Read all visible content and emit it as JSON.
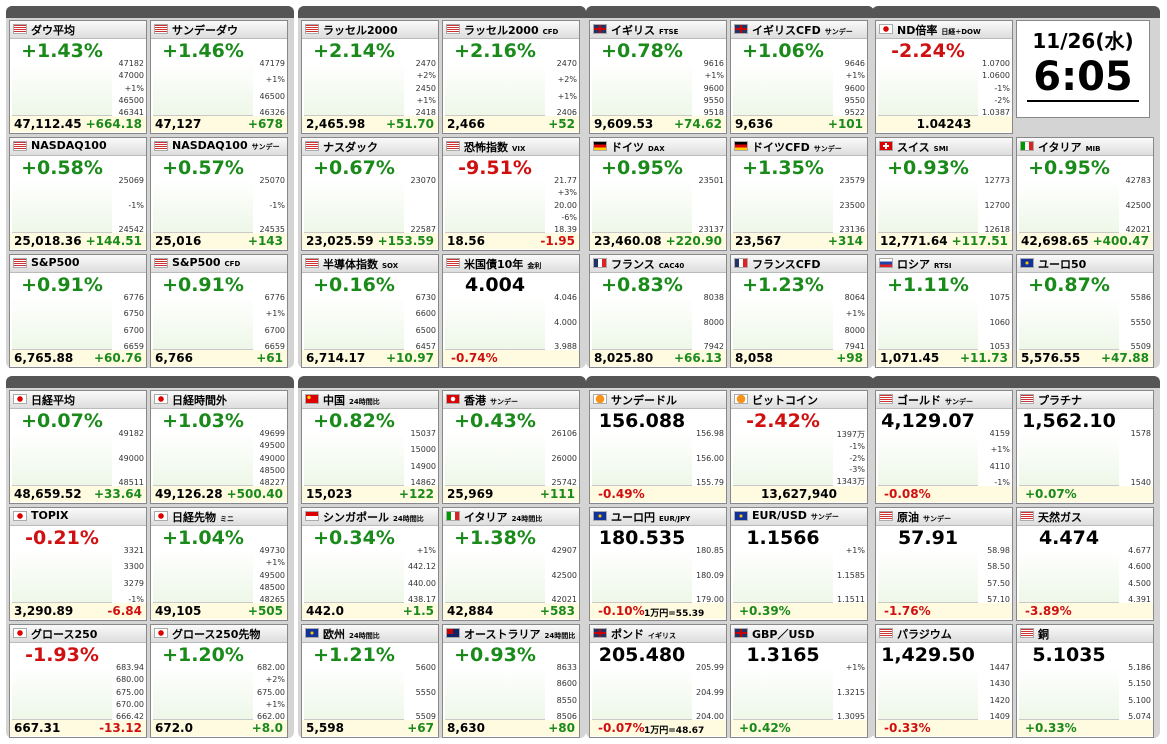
{
  "panels": [
    {
      "tiles": [
        {
          "name": "ダウ平均",
          "flag": "us",
          "pct": "+1.43%",
          "price": "47,112.45",
          "change": "+664.18",
          "axis": [
            "47182",
            "47000",
            "+1%",
            "46500",
            "46341"
          ]
        },
        {
          "name": "サンデーダウ",
          "flag": "us",
          "pct": "+1.46%",
          "price": "47,127",
          "change": "+678",
          "axis": [
            "47179",
            "+1%",
            "46500",
            "46326"
          ]
        },
        {
          "name": "NASDAQ100",
          "flag": "us",
          "pct": "+0.58%",
          "price": "25,018.36",
          "change": "+144.51",
          "axis": [
            "25069",
            "-1%",
            "24542"
          ]
        },
        {
          "name": "NASDAQ100",
          "tag": "サンデー",
          "flag": "us",
          "pct": "+0.57%",
          "price": "25,016",
          "change": "+143",
          "axis": [
            "25070",
            "-1%",
            "24535"
          ]
        },
        {
          "name": "S&P500",
          "flag": "us",
          "pct": "+0.91%",
          "price": "6,765.88",
          "change": "+60.76",
          "axis": [
            "6776",
            "6750",
            "6700",
            "6659"
          ]
        },
        {
          "name": "S&P500",
          "tag": "CFD",
          "flag": "us",
          "pct": "+0.91%",
          "price": "6,766",
          "change": "+61",
          "axis": [
            "6776",
            "+1%",
            "6700",
            "6659"
          ]
        }
      ]
    },
    {
      "tiles": [
        {
          "name": "ラッセル2000",
          "flag": "us",
          "pct": "+2.14%",
          "price": "2,465.98",
          "change": "+51.70",
          "axis": [
            "2470",
            "+2%",
            "2450",
            "+1%",
            "2418"
          ]
        },
        {
          "name": "ラッセル2000",
          "tag": "CFD",
          "flag": "us",
          "pct": "+2.16%",
          "price": "2,466",
          "change": "+52",
          "axis": [
            "2470",
            "+2%",
            "+1%",
            "2406"
          ]
        },
        {
          "name": "ナスダック",
          "flag": "us",
          "pct": "+0.67%",
          "price": "23,025.59",
          "change": "+153.59",
          "axis": [
            "23070",
            "22587"
          ]
        },
        {
          "name": "恐怖指数",
          "tag": "VIX",
          "flag": "us",
          "pct": "-9.51%",
          "price": "18.56",
          "change": "-1.95",
          "axis": [
            "21.77",
            "+3%",
            "20.00",
            "-6%",
            "18.39"
          ]
        },
        {
          "name": "半導体指数",
          "tag": "SOX",
          "flag": "us",
          "pct": "+0.16%",
          "price": "6,714.17",
          "change": "+10.97",
          "axis": [
            "6730",
            "6600",
            "6500",
            "6457"
          ]
        },
        {
          "name": "米国債10年",
          "tag": "金利",
          "flag": "us",
          "layout": "quote",
          "price": "4.004",
          "pct": "-0.74%",
          "axis": [
            "4.046",
            "4.000",
            "3.988"
          ]
        }
      ]
    },
    {
      "tiles": [
        {
          "name": "イギリス",
          "tag": "FTSE",
          "flag": "uk",
          "pct": "+0.78%",
          "price": "9,609.53",
          "change": "+74.62",
          "axis": [
            "9616",
            "+1%",
            "9600",
            "9550",
            "9518"
          ]
        },
        {
          "name": "イギリスCFD",
          "tag": "サンデー",
          "flag": "uk",
          "pct": "+1.06%",
          "price": "9,636",
          "change": "+101",
          "axis": [
            "9646",
            "+1%",
            "9600",
            "9550",
            "9522"
          ]
        },
        {
          "name": "ドイツ",
          "tag": "DAX",
          "flag": "de",
          "pct": "+0.95%",
          "price": "23,460.08",
          "change": "+220.90",
          "axis": [
            "23501",
            "23137"
          ]
        },
        {
          "name": "ドイツCFD",
          "tag": "サンデー",
          "flag": "de",
          "pct": "+1.35%",
          "price": "23,567",
          "change": "+314",
          "axis": [
            "23579",
            "23500",
            "23136"
          ]
        },
        {
          "name": "フランス",
          "tag": "CAC40",
          "flag": "fr",
          "pct": "+0.83%",
          "price": "8,025.80",
          "change": "+66.13",
          "axis": [
            "8038",
            "8000",
            "7942"
          ]
        },
        {
          "name": "フランスCFD",
          "flag": "fr",
          "pct": "+1.23%",
          "price": "8,058",
          "change": "+98",
          "axis": [
            "8064",
            "+1%",
            "8000",
            "7941"
          ]
        }
      ]
    },
    {
      "clock": {
        "date": "11/26(水)",
        "time": "6:05"
      },
      "tiles": [
        {
          "name": "ND倍率",
          "tag": "日経÷DOW",
          "flag": "jp",
          "layout": "ratio",
          "pct": "-2.24%",
          "price": "1.04243",
          "axis": [
            "1.0700",
            "1.0600",
            "-1%",
            "-2%",
            "1.0387"
          ]
        },
        {
          "name": "スイス",
          "tag": "SMI",
          "flag": "ch",
          "pct": "+0.93%",
          "price": "12,771.64",
          "change": "+117.51",
          "axis": [
            "12773",
            "12700",
            "12618"
          ]
        },
        {
          "name": "イタリア",
          "tag": "MIB",
          "flag": "it",
          "pct": "+0.95%",
          "price": "42,698.65",
          "change": "+400.47",
          "axis": [
            "42783",
            "42500",
            "42021"
          ]
        },
        {
          "name": "ロシア",
          "tag": "RTSI",
          "flag": "ru",
          "pct": "+1.11%",
          "price": "1,071.45",
          "change": "+11.73",
          "axis": [
            "1075",
            "1060",
            "1053"
          ]
        },
        {
          "name": "ユーロ50",
          "flag": "eu",
          "pct": "+0.87%",
          "price": "5,576.55",
          "change": "+47.88",
          "axis": [
            "5586",
            "5550",
            "5509"
          ]
        }
      ]
    },
    {
      "tiles": [
        {
          "name": "日経平均",
          "flag": "jp",
          "pct": "+0.07%",
          "price": "48,659.52",
          "change": "+33.64",
          "axis": [
            "49182",
            "49000",
            "48511"
          ]
        },
        {
          "name": "日経時間外",
          "flag": "jp",
          "pct": "+1.03%",
          "price": "49,126.28",
          "change": "+500.40",
          "axis": [
            "49699",
            "49500",
            "49000",
            "48500",
            "48227"
          ]
        },
        {
          "name": "TOPIX",
          "flag": "jp",
          "pct": "-0.21%",
          "price": "3,290.89",
          "change": "-6.84",
          "axis": [
            "3321",
            "3300",
            "3279",
            "-1%"
          ]
        },
        {
          "name": "日経先物",
          "tag": "ミニ",
          "flag": "jp",
          "pct": "+1.04%",
          "price": "49,105",
          "change": "+505",
          "axis": [
            "49730",
            "+1%",
            "49500",
            "48500",
            "48265"
          ]
        },
        {
          "name": "グロース250",
          "flag": "jp",
          "pct": "-1.93%",
          "price": "667.31",
          "change": "-13.12",
          "axis": [
            "683.94",
            "680.00",
            "675.00",
            "670.00",
            "666.42"
          ]
        },
        {
          "name": "グロース250先物",
          "flag": "jp",
          "pct": "+1.20%",
          "price": "672.0",
          "change": "+8.0",
          "axis": [
            "682.00",
            "+2%",
            "675.00",
            "+1%",
            "662.00"
          ]
        }
      ]
    },
    {
      "tiles": [
        {
          "name": "中国",
          "tag": "24時間比",
          "flag": "cn",
          "pct": "+0.82%",
          "price": "15,023",
          "change": "+122",
          "axis": [
            "15037",
            "15000",
            "14900",
            "14862"
          ]
        },
        {
          "name": "香港",
          "tag": "サンデー",
          "flag": "hk",
          "pct": "+0.43%",
          "price": "25,969",
          "change": "+111",
          "axis": [
            "26106",
            "26000",
            "25742"
          ]
        },
        {
          "name": "シンガポール",
          "tag": "24時間比",
          "flag": "sg",
          "pct": "+0.34%",
          "price": "442.0",
          "change": "+1.5",
          "axis": [
            "+1%",
            "442.12",
            "440.00",
            "438.17"
          ]
        },
        {
          "name": "イタリア",
          "tag": "24時間比",
          "flag": "it",
          "pct": "+1.38%",
          "price": "42,884",
          "change": "+583",
          "axis": [
            "42907",
            "42500",
            "42021"
          ]
        },
        {
          "name": "欧州",
          "tag": "24時間比",
          "flag": "eu",
          "pct": "+1.21%",
          "price": "5,598",
          "change": "+67",
          "axis": [
            "5600",
            "5550",
            "5509"
          ]
        },
        {
          "name": "オーストラリア",
          "tag": "24時間比",
          "flag": "au",
          "pct": "+0.93%",
          "price": "8,630",
          "change": "+80",
          "axis": [
            "8633",
            "8600",
            "8550",
            "8506"
          ]
        }
      ]
    },
    {
      "tiles": [
        {
          "name": "サンデードル",
          "flag": "btc",
          "layout": "quote",
          "price": "156.088",
          "pct": "-0.49%",
          "axis": [
            "156.98",
            "156.00",
            "155.79"
          ]
        },
        {
          "name": "ビットコイン",
          "flag": "btc",
          "pct": "-2.42%",
          "change": "13,627,940",
          "axis": [
            "1397万",
            "-1%",
            "-2%",
            "-3%",
            "1343万"
          ]
        },
        {
          "name": "ユーロ円",
          "tag": "EUR/JPY",
          "flag": "eu",
          "layout": "quote",
          "price": "180.535",
          "pct": "-0.10%",
          "note": "1万円=55.39",
          "axis": [
            "180.85",
            "180.09",
            "179.00"
          ]
        },
        {
          "name": "EUR/USD",
          "tag": "サンデー",
          "flag": "eu",
          "layout": "quote",
          "price": "1.1566",
          "pct": "+0.39%",
          "axis": [
            "+1%",
            "1.1585",
            "1.1511"
          ]
        },
        {
          "name": "ポンド",
          "tag": "イギリス",
          "flag": "uk",
          "layout": "quote",
          "price": "205.480",
          "pct": "-0.07%",
          "note": "1万円=48.67",
          "axis": [
            "205.99",
            "204.99",
            "204.00"
          ]
        },
        {
          "name": "GBP／USD",
          "flag": "uk",
          "layout": "quote",
          "price": "1.3165",
          "pct": "+0.42%",
          "axis": [
            "+1%",
            "1.3215",
            "1.3095"
          ]
        }
      ]
    },
    {
      "tiles": [
        {
          "name": "ゴールド",
          "tag": "サンデー",
          "flag": "us",
          "layout": "quote",
          "price": "4,129.07",
          "pct": "-0.08%",
          "axis": [
            "4159",
            "+1%",
            "4110",
            "-1%"
          ]
        },
        {
          "name": "プラチナ",
          "flag": "us",
          "layout": "quote",
          "price": "1,562.10",
          "pct": "+0.07%",
          "axis": [
            "1578",
            "1540"
          ]
        },
        {
          "name": "原油",
          "tag": "サンデー",
          "flag": "us",
          "layout": "quote",
          "price": "57.91",
          "pct": "-1.76%",
          "axis": [
            "58.98",
            "58.50",
            "57.50",
            "57.10"
          ]
        },
        {
          "name": "天然ガス",
          "flag": "us",
          "layout": "quote",
          "price": "4.474",
          "pct": "-3.89%",
          "axis": [
            "4.677",
            "4.600",
            "4.500",
            "4.391"
          ]
        },
        {
          "name": "パラジウム",
          "flag": "us",
          "layout": "quote",
          "price": "1,429.50",
          "pct": "-0.33%",
          "axis": [
            "1447",
            "1430",
            "1420",
            "1409"
          ]
        },
        {
          "name": "銅",
          "flag": "us",
          "layout": "quote",
          "price": "5.1035",
          "pct": "+0.33%",
          "axis": [
            "5.186",
            "5.150",
            "5.100",
            "5.074"
          ]
        }
      ]
    }
  ]
}
